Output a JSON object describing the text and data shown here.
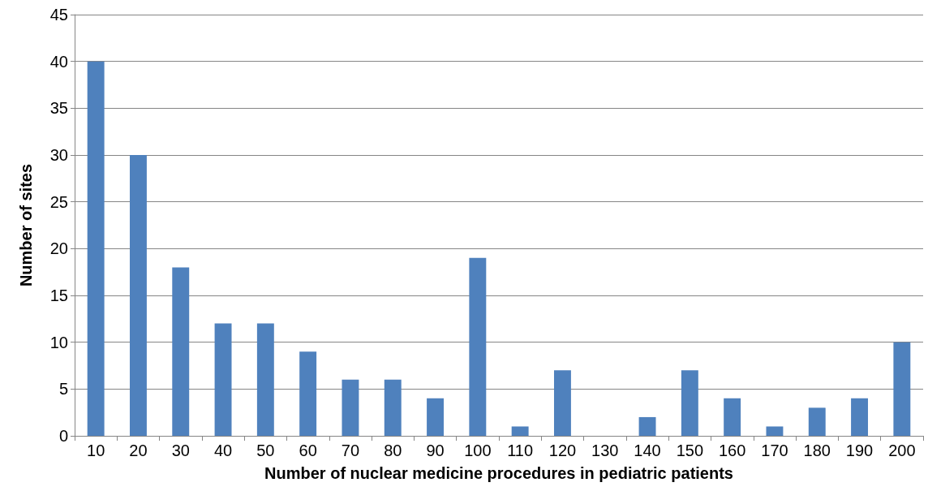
{
  "chart_data": {
    "type": "bar",
    "xlabel": "Number of nuclear medicine procedures in pediatric patients",
    "ylabel": "Number of sites",
    "categories": [
      "10",
      "20",
      "30",
      "40",
      "50",
      "60",
      "70",
      "80",
      "90",
      "100",
      "110",
      "120",
      "130",
      "140",
      "150",
      "160",
      "170",
      "180",
      "190",
      "200"
    ],
    "values": [
      40,
      30,
      18,
      12,
      12,
      9,
      6,
      6,
      4,
      19,
      1,
      7,
      0,
      2,
      7,
      4,
      1,
      3,
      4,
      10
    ],
    "color": "#4f81bd",
    "ylim": [
      0,
      45
    ],
    "yticks": [
      0,
      5,
      10,
      15,
      20,
      25,
      30,
      35,
      40,
      45
    ],
    "grid": "y"
  }
}
